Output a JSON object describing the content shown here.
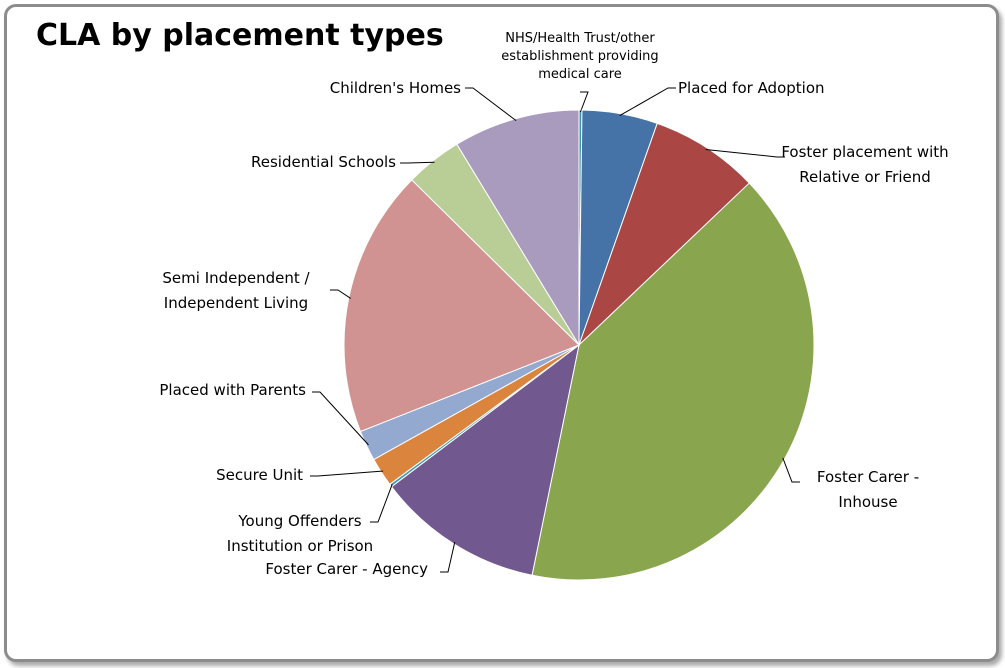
{
  "chart_data": {
    "type": "pie",
    "title": "CLA by placement types",
    "categories": [
      "NHS/Health Trust/other establishment providing medical care",
      "Placed for Adoption",
      "Foster placement with Relative or Friend",
      "Foster Carer - Inhouse",
      "Foster Carer - Agency",
      "Young Offenders Institution or Prison",
      "Secure Unit",
      "Placed with Parents",
      "Semi Independent / Independent Living",
      "Residential Schools",
      "Children's Homes"
    ],
    "values": [
      0.2,
      5.2,
      7.5,
      40.3,
      11.5,
      0.2,
      2.0,
      2.1,
      18.4,
      3.9,
      8.7
    ],
    "colors": [
      "#3d96ae",
      "#4572a7",
      "#aa4643",
      "#89a54e",
      "#71588f",
      "#4198af",
      "#db843d",
      "#93a9cf",
      "#d19392",
      "#b9cd96",
      "#a99bbd"
    ]
  }
}
